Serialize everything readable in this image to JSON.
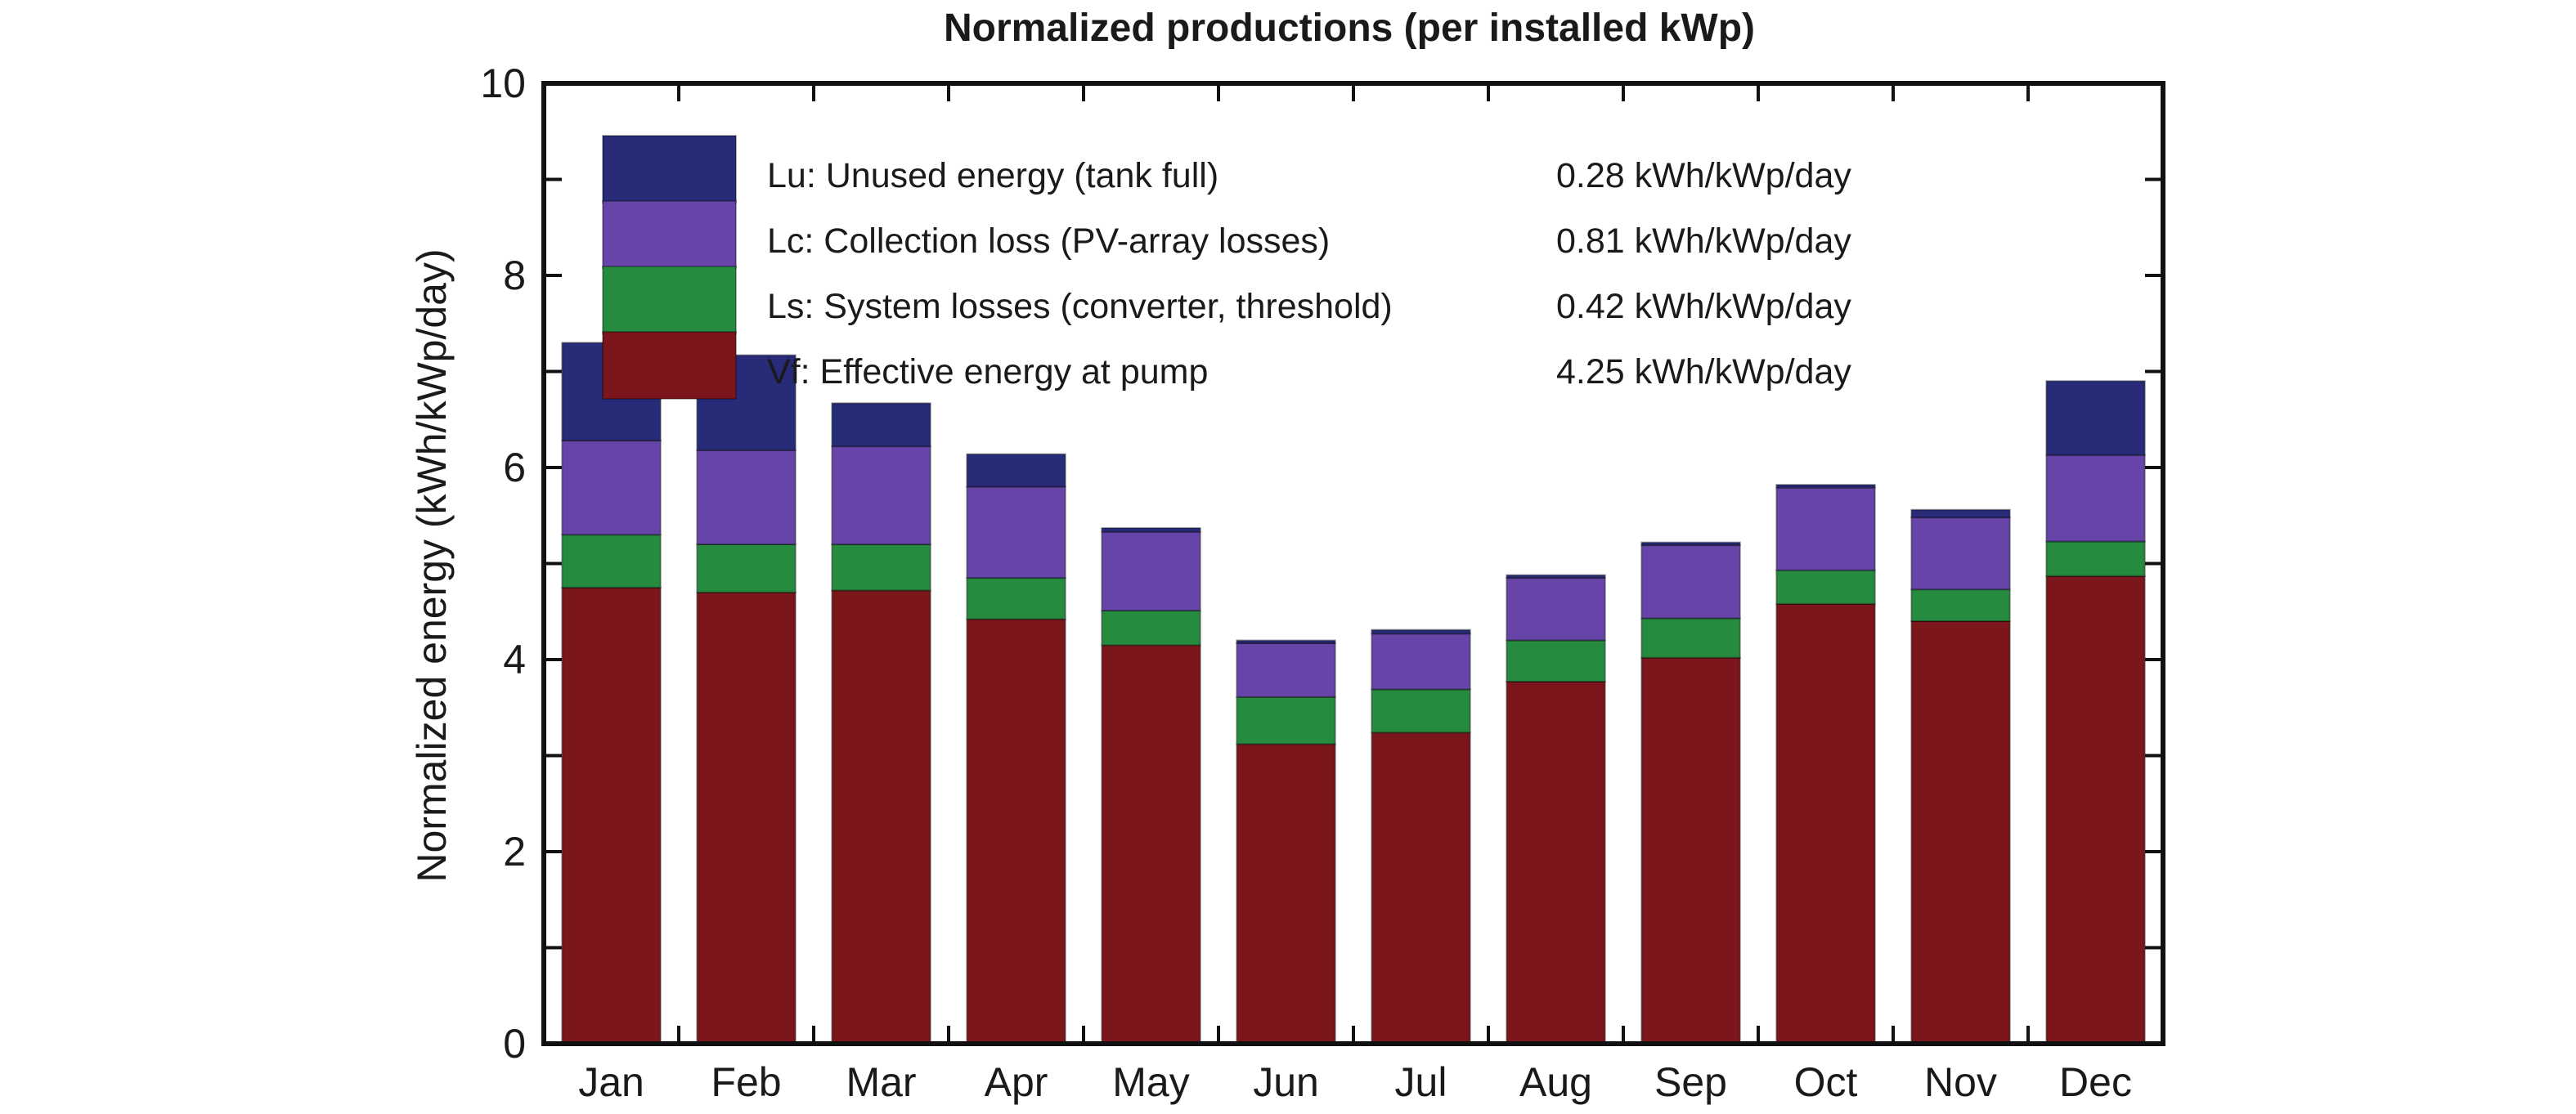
{
  "chart_data": {
    "type": "bar",
    "stacked": true,
    "title": "Normalized productions (per installed kWp)",
    "xlabel": "",
    "ylabel": "Normalized energy (kWh/kWp/day)",
    "ylim": [
      0,
      10
    ],
    "yticks": [
      "0",
      "2",
      "4",
      "6",
      "8",
      "10"
    ],
    "grid": false,
    "legend_position": "top-left",
    "categories": [
      "Jan",
      "Feb",
      "Mar",
      "Apr",
      "May",
      "Jun",
      "Jul",
      "Aug",
      "Sep",
      "Oct",
      "Nov",
      "Dec"
    ],
    "series": [
      {
        "name": "Vf: Effective energy at pump",
        "summary": "4.25 kWh/kWp/day",
        "color": "#7b171c",
        "values": [
          4.75,
          4.7,
          4.72,
          4.42,
          4.15,
          3.12,
          3.24,
          3.77,
          4.02,
          4.58,
          4.4,
          4.87
        ]
      },
      {
        "name": "Ls: System losses (converter, threshold)",
        "summary": "0.42 kWh/kWp/day",
        "color": "#268a3f",
        "values": [
          0.55,
          0.5,
          0.48,
          0.43,
          0.36,
          0.49,
          0.45,
          0.43,
          0.41,
          0.35,
          0.33,
          0.36
        ]
      },
      {
        "name": "Lc: Collection loss (PV-array losses)",
        "summary": "0.81 kWh/kWp/day",
        "color": "#6644a8",
        "values": [
          0.98,
          0.98,
          1.02,
          0.95,
          0.82,
          0.56,
          0.58,
          0.65,
          0.76,
          0.86,
          0.75,
          0.9
        ]
      },
      {
        "name": "Lu: Unused energy (tank full)",
        "summary": "0.28 kWh/kWp/day",
        "color": "#272b78",
        "values": [
          1.02,
          0.99,
          0.45,
          0.34,
          0.04,
          0.03,
          0.04,
          0.03,
          0.03,
          0.03,
          0.08,
          0.77
        ]
      }
    ]
  }
}
